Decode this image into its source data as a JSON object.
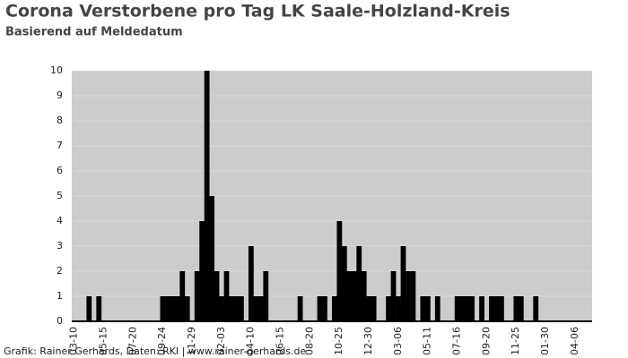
{
  "chart_data": {
    "type": "bar",
    "title": "Corona Verstorbene pro Tag LK Saale-Holzland-Kreis",
    "subtitle": "Basierend auf Meldedatum",
    "footer": "Grafik: Rainer Gerhards, Daten: RKI | www.rainer-gerhards.de",
    "categories": [
      "03-10",
      null,
      null,
      null,
      null,
      null,
      "05-15",
      null,
      null,
      null,
      null,
      null,
      "07-20",
      null,
      null,
      null,
      null,
      null,
      "09-24",
      null,
      null,
      null,
      null,
      null,
      "11-29",
      null,
      null,
      null,
      null,
      null,
      "02-03",
      null,
      null,
      null,
      null,
      null,
      "04-10",
      null,
      null,
      null,
      null,
      null,
      "06-15",
      null,
      null,
      null,
      null,
      null,
      "08-20",
      null,
      null,
      null,
      null,
      null,
      "10-25",
      null,
      null,
      null,
      null,
      null,
      "12-30",
      null,
      null,
      null,
      null,
      null,
      "03-06",
      null,
      null,
      null,
      null,
      null,
      "05-11",
      null,
      null,
      null,
      null,
      null,
      "07-16",
      null,
      null,
      null,
      null,
      null,
      "09-20",
      null,
      null,
      null,
      null,
      null,
      "11-25",
      null,
      null,
      null,
      null,
      null,
      "01-30",
      null,
      null,
      null,
      null,
      null,
      "04-06",
      null,
      null,
      null
    ],
    "values": [
      0,
      0,
      0,
      1,
      0,
      1,
      0,
      0,
      0,
      0,
      0,
      0,
      0,
      0,
      0,
      0,
      0,
      0,
      1,
      1,
      1,
      1,
      2,
      1,
      0,
      2,
      4,
      10,
      5,
      2,
      1,
      2,
      1,
      1,
      1,
      0,
      3,
      1,
      1,
      2,
      0,
      0,
      0,
      0,
      0,
      0,
      1,
      0,
      0,
      0,
      1,
      1,
      0,
      1,
      4,
      3,
      2,
      2,
      3,
      2,
      1,
      1,
      0,
      0,
      1,
      2,
      1,
      3,
      2,
      2,
      0,
      1,
      1,
      0,
      1,
      0,
      0,
      0,
      1,
      1,
      1,
      1,
      0,
      1,
      0,
      1,
      1,
      1,
      0,
      0,
      1,
      1,
      0,
      0,
      1,
      0,
      0,
      0,
      0,
      0,
      0,
      0,
      0,
      0,
      0,
      0
    ],
    "color": "#000000",
    "background": "#cccccc",
    "ylim": [
      0,
      10
    ],
    "yticks": [
      0,
      1,
      2,
      3,
      4,
      5,
      6,
      7,
      8,
      9,
      10
    ],
    "grid": true
  }
}
